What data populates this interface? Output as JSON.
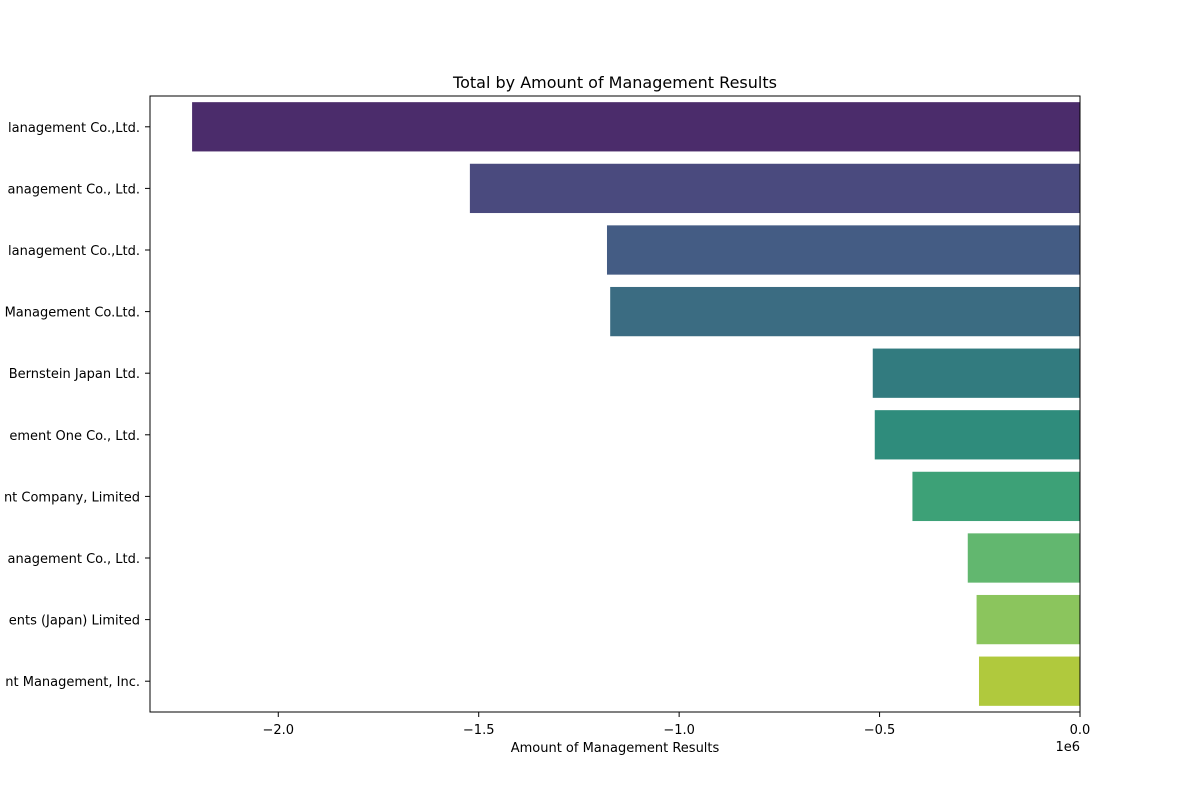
{
  "chart_data": {
    "type": "bar",
    "orientation": "horizontal",
    "title": "Total by Amount of Management Results",
    "xlabel": "Amount of Management Results",
    "ylabel": "",
    "offset_text": "1e6",
    "xlim": [
      -2.32,
      0.0
    ],
    "x_ticks": [
      -2.0,
      -1.5,
      -1.0,
      -0.5,
      0.0
    ],
    "x_tick_labels": [
      "−2.0",
      "−1.5",
      "−1.0",
      "−0.5",
      "0.0"
    ],
    "categories": [
      "lanagement Co.,Ltd.",
      "anagement Co., Ltd.",
      "lanagement Co.,Ltd.",
      "Management Co.Ltd.",
      "Bernstein Japan Ltd.",
      "ement One Co., Ltd. ",
      "nt Company, Limited",
      "anagement Co., Ltd.",
      "ents (Japan) Limited",
      "nt Management, Inc."
    ],
    "values": [
      -2215000,
      -1522000,
      -1180000,
      -1172000,
      -517000,
      -512000,
      -418000,
      -280000,
      -258000,
      -252000
    ],
    "colors": [
      "#4b2c6b",
      "#4a4a7e",
      "#445c84",
      "#3b6c82",
      "#327b7f",
      "#2f8c7c",
      "#3da177",
      "#62b76f",
      "#8bc55d",
      "#b0c93d"
    ],
    "grid": false,
    "legend": "none"
  }
}
